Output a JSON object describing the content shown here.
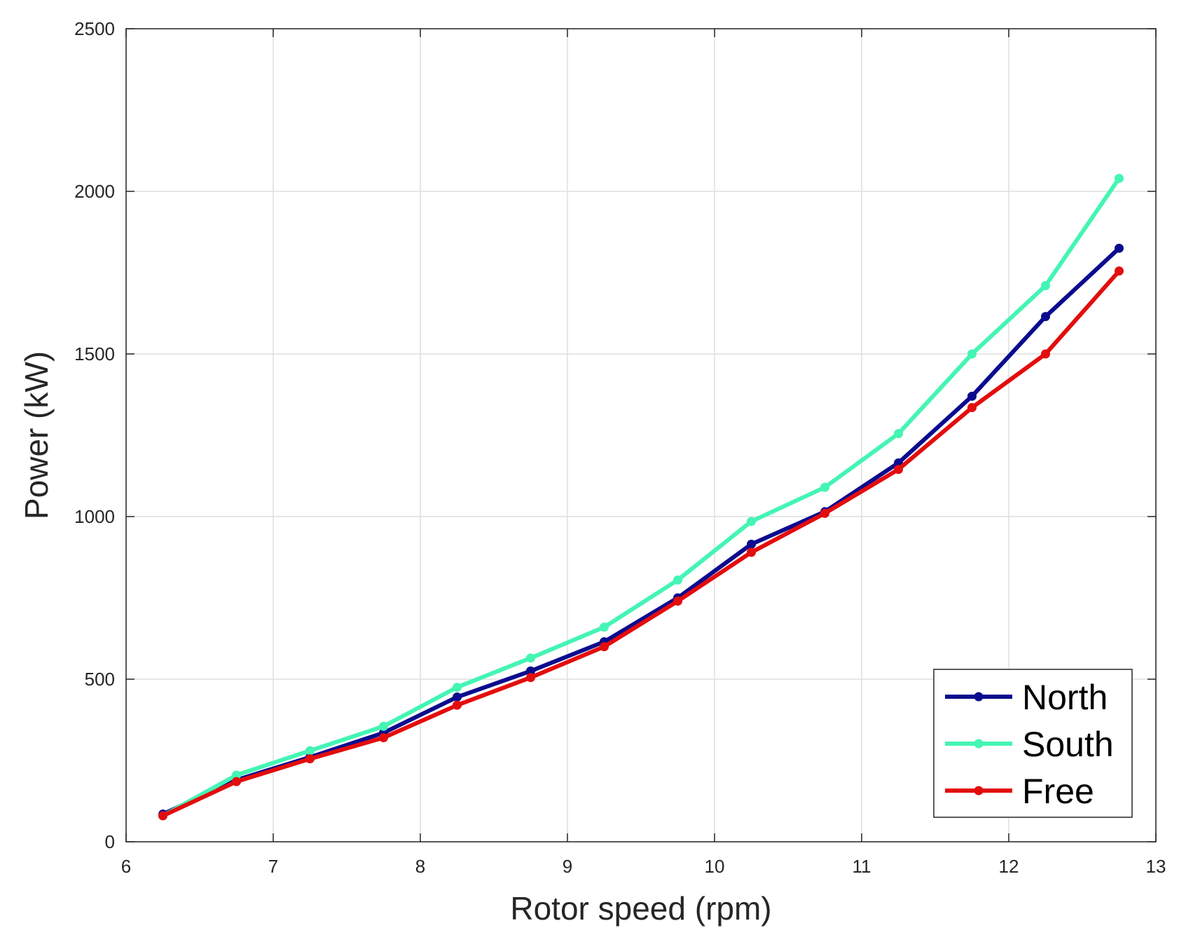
{
  "chart_data": {
    "type": "line",
    "title": "",
    "xlabel": "Rotor speed (rpm)",
    "ylabel": "Power (kW)",
    "xlim": [
      6,
      13
    ],
    "ylim": [
      0,
      2500
    ],
    "xticks": [
      6,
      7,
      8,
      9,
      10,
      11,
      12,
      13
    ],
    "yticks": [
      0,
      500,
      1000,
      1500,
      2000,
      2500
    ],
    "grid": true,
    "legend_position": "bottom-right",
    "x": [
      6.25,
      6.75,
      7.25,
      7.75,
      8.25,
      8.75,
      9.25,
      9.75,
      10.25,
      10.75,
      11.25,
      11.75,
      12.25,
      12.75
    ],
    "series": [
      {
        "name": "North",
        "color": "#0b0b8e",
        "values": [
          85,
          190,
          260,
          335,
          445,
          525,
          615,
          750,
          915,
          1015,
          1165,
          1370,
          1615,
          1825
        ]
      },
      {
        "name": "South",
        "color": "#44f5b4",
        "values": [
          80,
          205,
          280,
          355,
          475,
          565,
          660,
          805,
          985,
          1090,
          1255,
          1500,
          1710,
          2040
        ]
      },
      {
        "name": "Free",
        "color": "#e30d0d",
        "values": [
          80,
          185,
          255,
          320,
          420,
          505,
          600,
          740,
          890,
          1010,
          1145,
          1335,
          1500,
          1755
        ]
      }
    ]
  }
}
